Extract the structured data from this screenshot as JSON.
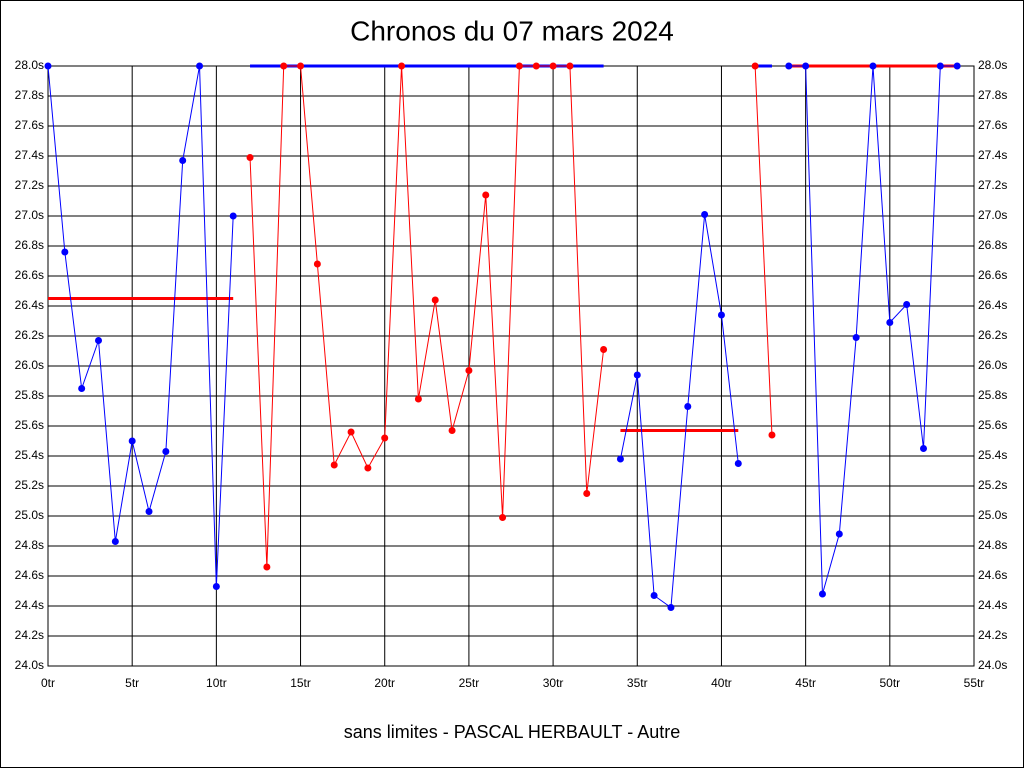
{
  "chart_data": {
    "type": "line",
    "title": "Chronos du 07 mars 2024",
    "subtitle": "sans limites - PASCAL HERBAULT - Autre",
    "grid": true,
    "xlim": [
      0,
      55
    ],
    "xticks": [
      {
        "value": 0,
        "label": "0tr"
      },
      {
        "value": 5,
        "label": "5tr"
      },
      {
        "value": 10,
        "label": "10tr"
      },
      {
        "value": 15,
        "label": "15tr"
      },
      {
        "value": 20,
        "label": "20tr"
      },
      {
        "value": 25,
        "label": "25tr"
      },
      {
        "value": 30,
        "label": "30tr"
      },
      {
        "value": 35,
        "label": "35tr"
      },
      {
        "value": 40,
        "label": "40tr"
      },
      {
        "value": 45,
        "label": "45tr"
      },
      {
        "value": 50,
        "label": "50tr"
      },
      {
        "value": 55,
        "label": "55tr"
      }
    ],
    "ylim": [
      24.0,
      28.0
    ],
    "yticks": [
      {
        "value": 24.0,
        "label": "24.0s"
      },
      {
        "value": 24.2,
        "label": "24.2s"
      },
      {
        "value": 24.4,
        "label": "24.4s"
      },
      {
        "value": 24.6,
        "label": "24.6s"
      },
      {
        "value": 24.8,
        "label": "24.8s"
      },
      {
        "value": 25.0,
        "label": "25.0s"
      },
      {
        "value": 25.2,
        "label": "25.2s"
      },
      {
        "value": 25.4,
        "label": "25.4s"
      },
      {
        "value": 25.6,
        "label": "25.6s"
      },
      {
        "value": 25.8,
        "label": "25.8s"
      },
      {
        "value": 26.0,
        "label": "26.0s"
      },
      {
        "value": 26.2,
        "label": "26.2s"
      },
      {
        "value": 26.4,
        "label": "26.4s"
      },
      {
        "value": 26.6,
        "label": "26.6s"
      },
      {
        "value": 26.8,
        "label": "26.8s"
      },
      {
        "value": 27.0,
        "label": "27.0s"
      },
      {
        "value": 27.2,
        "label": "27.2s"
      },
      {
        "value": 27.4,
        "label": "27.4s"
      },
      {
        "value": 27.6,
        "label": "27.6s"
      },
      {
        "value": 27.8,
        "label": "27.8s"
      },
      {
        "value": 28.0,
        "label": "28.0s"
      }
    ],
    "series": [
      {
        "color": "#0000ff",
        "x": [
          0,
          1,
          2,
          3,
          4,
          5,
          6,
          7,
          8,
          9,
          10,
          11
        ],
        "values": [
          28.0,
          26.76,
          25.85,
          26.17,
          24.83,
          25.5,
          25.03,
          25.43,
          27.37,
          28.0,
          24.53,
          27.0
        ]
      },
      {
        "color": "#ff0000",
        "x": [
          12,
          13,
          14,
          15,
          16,
          17,
          18,
          19,
          20,
          21,
          22,
          23,
          24,
          25,
          26,
          27,
          28,
          29,
          30,
          31,
          32,
          33
        ],
        "values": [
          27.39,
          24.66,
          28.0,
          28.0,
          26.68,
          25.34,
          25.56,
          25.32,
          25.52,
          28.0,
          25.78,
          26.44,
          25.57,
          25.97,
          27.14,
          24.99,
          28.0,
          28.0,
          28.0,
          28.0,
          25.15,
          26.11
        ]
      },
      {
        "color": "#0000ff",
        "x": [
          34,
          35,
          36,
          37,
          38,
          39,
          40,
          41
        ],
        "values": [
          25.38,
          25.94,
          24.47,
          24.39,
          25.73,
          27.01,
          26.34,
          25.35
        ]
      },
      {
        "color": "#ff0000",
        "x": [
          42,
          43
        ],
        "values": [
          28.0,
          25.54
        ]
      },
      {
        "color": "#0000ff",
        "x": [
          44,
          45,
          46,
          47,
          48,
          49,
          50,
          51,
          52,
          53,
          54
        ],
        "values": [
          28.0,
          28.0,
          24.48,
          24.88,
          26.19,
          28.0,
          26.29,
          26.41,
          25.45,
          28.0,
          28.0
        ]
      }
    ],
    "averages": [
      {
        "color": "#ff0000",
        "xrange": [
          0,
          11
        ],
        "value": 26.45
      },
      {
        "color": "#0000ff",
        "xrange": [
          12,
          33
        ],
        "value": 28.0
      },
      {
        "color": "#ff0000",
        "xrange": [
          34,
          41
        ],
        "value": 25.57
      },
      {
        "color": "#0000ff",
        "xrange": [
          42,
          43
        ],
        "value": 28.0
      },
      {
        "color": "#ff0000",
        "xrange": [
          44,
          54
        ],
        "value": 28.0
      }
    ]
  }
}
